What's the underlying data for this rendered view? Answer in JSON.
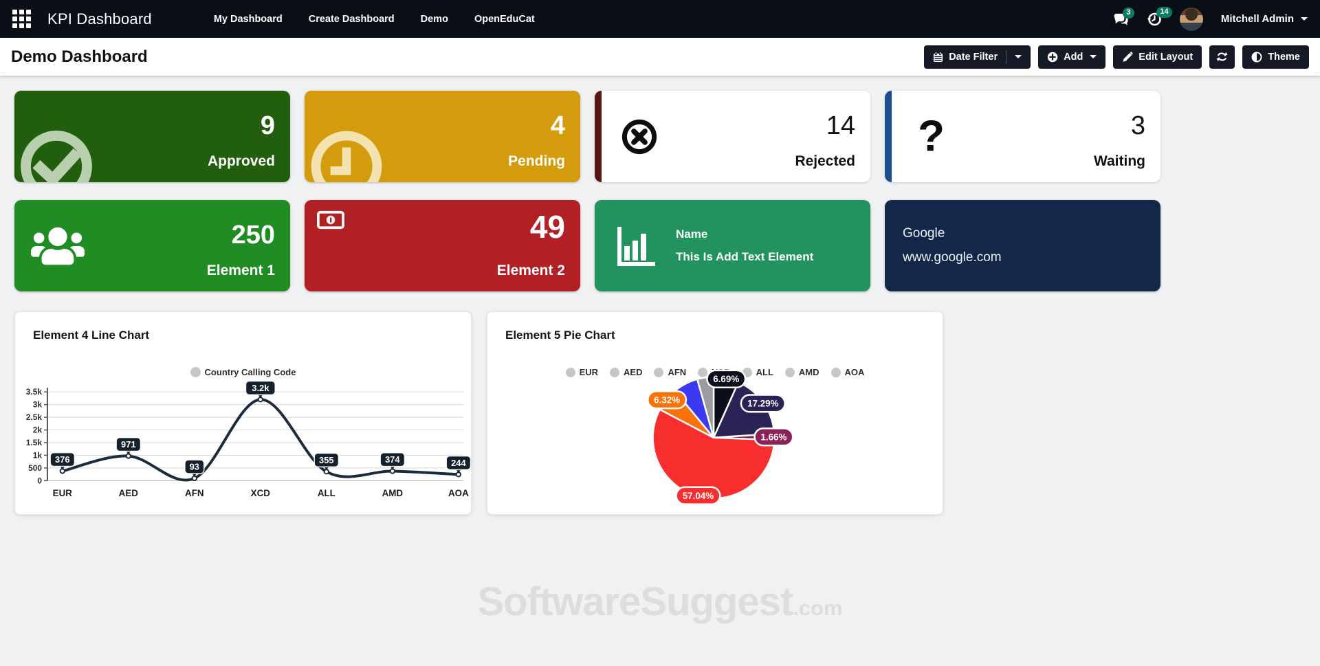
{
  "navbar": {
    "brand": "KPI Dashboard",
    "menu": [
      "My Dashboard",
      "Create Dashboard",
      "Demo",
      "OpenEduCat"
    ],
    "messages_badge": "3",
    "activity_badge": "14",
    "user_name": "Mitchell Admin"
  },
  "header": {
    "title": "Demo Dashboard",
    "date_filter": "Date Filter",
    "add": "Add",
    "edit_layout": "Edit Layout",
    "theme": "Theme"
  },
  "cards": {
    "approved": {
      "value": "9",
      "label": "Approved",
      "bg": "#215e0e",
      "icon_color": "#b9d0ae"
    },
    "pending": {
      "value": "4",
      "label": "Pending",
      "bg": "#d49c0d",
      "icon_color": "#f4e3ae"
    },
    "rejected": {
      "value": "14",
      "label": "Rejected",
      "accent": "#581313"
    },
    "waiting": {
      "value": "3",
      "label": "Waiting",
      "accent": "#1c4d8e",
      "icon_glyph": "?"
    },
    "element1": {
      "value": "250",
      "label": "Element 1",
      "bg": "#1f8c24"
    },
    "element2": {
      "value": "49",
      "label": "Element 2",
      "bg": "#b02025"
    },
    "text_element": {
      "name": "Name",
      "text": "This Is Add Text Element",
      "bg": "#22935f"
    },
    "link_element": {
      "title": "Google",
      "url": "www.google.com",
      "bg": "#132849"
    }
  },
  "line_card": {
    "title": "Element 4 Line Chart",
    "legend": "Country Calling Code"
  },
  "pie_card": {
    "title": "Element 5 Pie Chart"
  },
  "chart_data": [
    {
      "type": "line",
      "title": "Element 4 Line Chart",
      "legend": [
        "Country Calling Code"
      ],
      "legend_position": "top",
      "categories": [
        "EUR",
        "AED",
        "AFN",
        "XCD",
        "ALL",
        "AMD",
        "AOA"
      ],
      "values": [
        376,
        971,
        93,
        3200,
        355,
        374,
        244
      ],
      "point_labels": [
        "376",
        "971",
        "93",
        "3.2k",
        "355",
        "374",
        "244"
      ],
      "ylim": [
        0,
        3500
      ],
      "ytick_step": 500,
      "ytick_labels": [
        "0",
        "500",
        "1k",
        "1.5k",
        "2k",
        "2.5k",
        "3k",
        "3.5k"
      ],
      "grid": true,
      "line_color": "#1b2b3c",
      "point_label_bg": "#14202c"
    },
    {
      "type": "pie",
      "title": "Element 5 Pie Chart",
      "legend_position": "top",
      "categories": [
        "EUR",
        "AED",
        "AFN",
        "XCD",
        "ALL",
        "AMD",
        "AOA"
      ],
      "values": [
        6.69,
        17.29,
        1.66,
        57.04,
        6.32,
        6.66,
        4.34
      ],
      "slice_labels": [
        "6.69%",
        "17.29%",
        "1.66%",
        "57.04%",
        "6.32%",
        "",
        ""
      ],
      "colors": [
        "#0b0f1c",
        "#2a2456",
        "#8c2157",
        "#f82d2d",
        "#f97109",
        "#3b3af0",
        "#9b9ba0"
      ],
      "start_angle": "top",
      "direction": "clockwise",
      "legend_marker_color": "#c6c6c6"
    }
  ],
  "watermark": {
    "text": "SoftwareSuggest",
    "suffix": ".com"
  }
}
